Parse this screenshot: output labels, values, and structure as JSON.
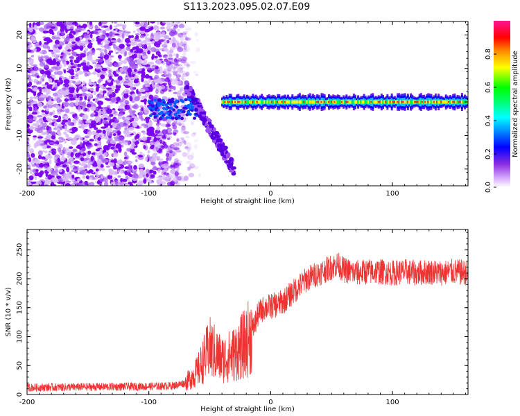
{
  "figure": {
    "title": "S113.2023.095.02.07.E09"
  },
  "chart_data": [
    {
      "type": "heatmap",
      "title": "",
      "xlabel": "Height of straight line (km)",
      "ylabel": "Frequency (Hz)",
      "xlim": [
        -200,
        162
      ],
      "ylim": [
        -25,
        24
      ],
      "x_ticks": [
        -200,
        -100,
        0,
        100
      ],
      "x_tick_labels": [
        "-200",
        "-100",
        "0",
        "100"
      ],
      "y_ticks": [
        -20,
        -10,
        0,
        10,
        20
      ],
      "y_tick_labels": [
        "-20",
        "-10",
        "0",
        "10",
        "20"
      ],
      "colorbar": {
        "label": "Normalized spectral amplitude",
        "range": [
          0,
          1
        ],
        "ticks": [
          0.0,
          0.2,
          0.4,
          0.6,
          0.8
        ],
        "tick_labels": [
          "0.0",
          "0.2",
          "0.4",
          "0.6",
          "0.8"
        ],
        "colors": [
          "#ffffff",
          "#8a2be2",
          "#0000ff",
          "#00ffff",
          "#00ff00",
          "#ffff00",
          "#ff0000",
          "#ff1493"
        ]
      },
      "description_regions": {
        "noise": {
          "x_range": [
            -200,
            -70
          ],
          "y_range": [
            -25,
            24
          ]
        },
        "tone": {
          "x_range": [
            -40,
            162
          ],
          "frequency": 0
        }
      },
      "grid": false
    },
    {
      "type": "line",
      "title": "",
      "xlabel": "Height of straight line (km)",
      "ylabel": "SNR (10 * v/v)",
      "xlim": [
        -200,
        162
      ],
      "ylim": [
        0,
        285
      ],
      "x_ticks": [
        -200,
        -100,
        0,
        100
      ],
      "x_tick_labels": [
        "-200",
        "-100",
        "0",
        "100"
      ],
      "y_ticks": [
        0,
        50,
        100,
        150,
        200,
        250
      ],
      "y_tick_labels": [
        "0",
        "50",
        "100",
        "150",
        "200",
        "250"
      ],
      "line_color": "#ee3333",
      "trend": {
        "x": [
          -200,
          -150,
          -100,
          -80,
          -70,
          -60,
          -50,
          -40,
          -30,
          -20,
          -15,
          -10,
          -5,
          0,
          5,
          10,
          20,
          30,
          40,
          50,
          55,
          60,
          70,
          80,
          90,
          100,
          110,
          120,
          130,
          140,
          150,
          162
        ],
        "y": [
          12,
          13,
          14,
          15,
          20,
          40,
          80,
          60,
          70,
          90,
          110,
          140,
          150,
          152,
          155,
          160,
          180,
          200,
          210,
          220,
          225,
          215,
          210,
          212,
          212,
          210,
          212,
          210,
          212,
          210,
          212,
          210
        ]
      },
      "grid": false
    }
  ]
}
